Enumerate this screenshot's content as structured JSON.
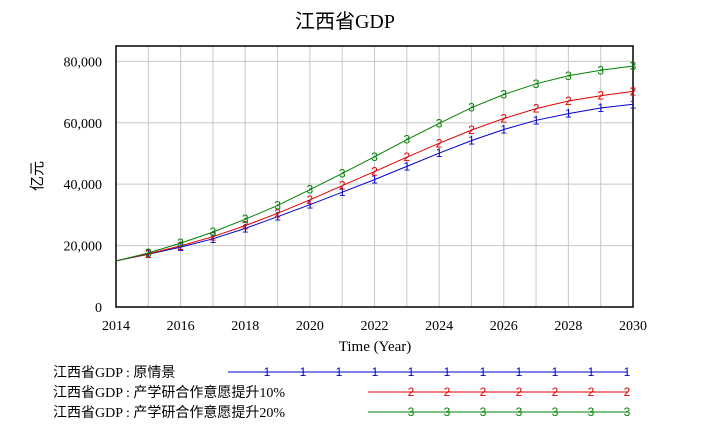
{
  "chart_data": {
    "type": "line",
    "title": "江西省GDP",
    "xlabel": "Time (Year)",
    "ylabel": "亿元",
    "xlim": [
      2014,
      2030
    ],
    "ylim": [
      0,
      85000
    ],
    "x_ticks": [
      2014,
      2016,
      2018,
      2020,
      2022,
      2024,
      2026,
      2028,
      2030
    ],
    "x_tick_labels": [
      "2014",
      "2016",
      "2018",
      "2020",
      "2022",
      "2024",
      "2026",
      "2028",
      "2030"
    ],
    "y_ticks": [
      0,
      20000,
      40000,
      60000,
      80000
    ],
    "y_tick_labels": [
      "0",
      "20,000",
      "40,000",
      "60,000",
      "80,000"
    ],
    "grid": true,
    "legend_position": "bottom",
    "x": [
      2014,
      2015,
      2016,
      2017,
      2018,
      2019,
      2020,
      2021,
      2022,
      2023,
      2024,
      2025,
      2026,
      2027,
      2028,
      2029,
      2030
    ],
    "series": [
      {
        "name": "江西省GDP : 原情景",
        "marker": "1",
        "color": "#0000cc",
        "values": [
          15000,
          17200,
          19500,
          22200,
          25600,
          29400,
          33300,
          37400,
          41500,
          45800,
          50100,
          54200,
          57800,
          60800,
          63000,
          64800,
          66000
        ]
      },
      {
        "name": "江西省GDP : 产学研合作意愿提升10%",
        "marker": "2",
        "color": "#e00000",
        "values": [
          15000,
          17300,
          19900,
          22900,
          26500,
          30500,
          34900,
          39500,
          44100,
          48800,
          53300,
          57600,
          61400,
          64600,
          67100,
          68800,
          70200
        ]
      },
      {
        "name": "江西省GDP : 产学研合作意愿提升20%",
        "marker": "3",
        "color": "#008000",
        "values": [
          15000,
          17600,
          20800,
          24400,
          28600,
          33100,
          38200,
          43500,
          48900,
          54500,
          59800,
          64900,
          69200,
          72700,
          75300,
          77100,
          78500
        ]
      }
    ]
  }
}
